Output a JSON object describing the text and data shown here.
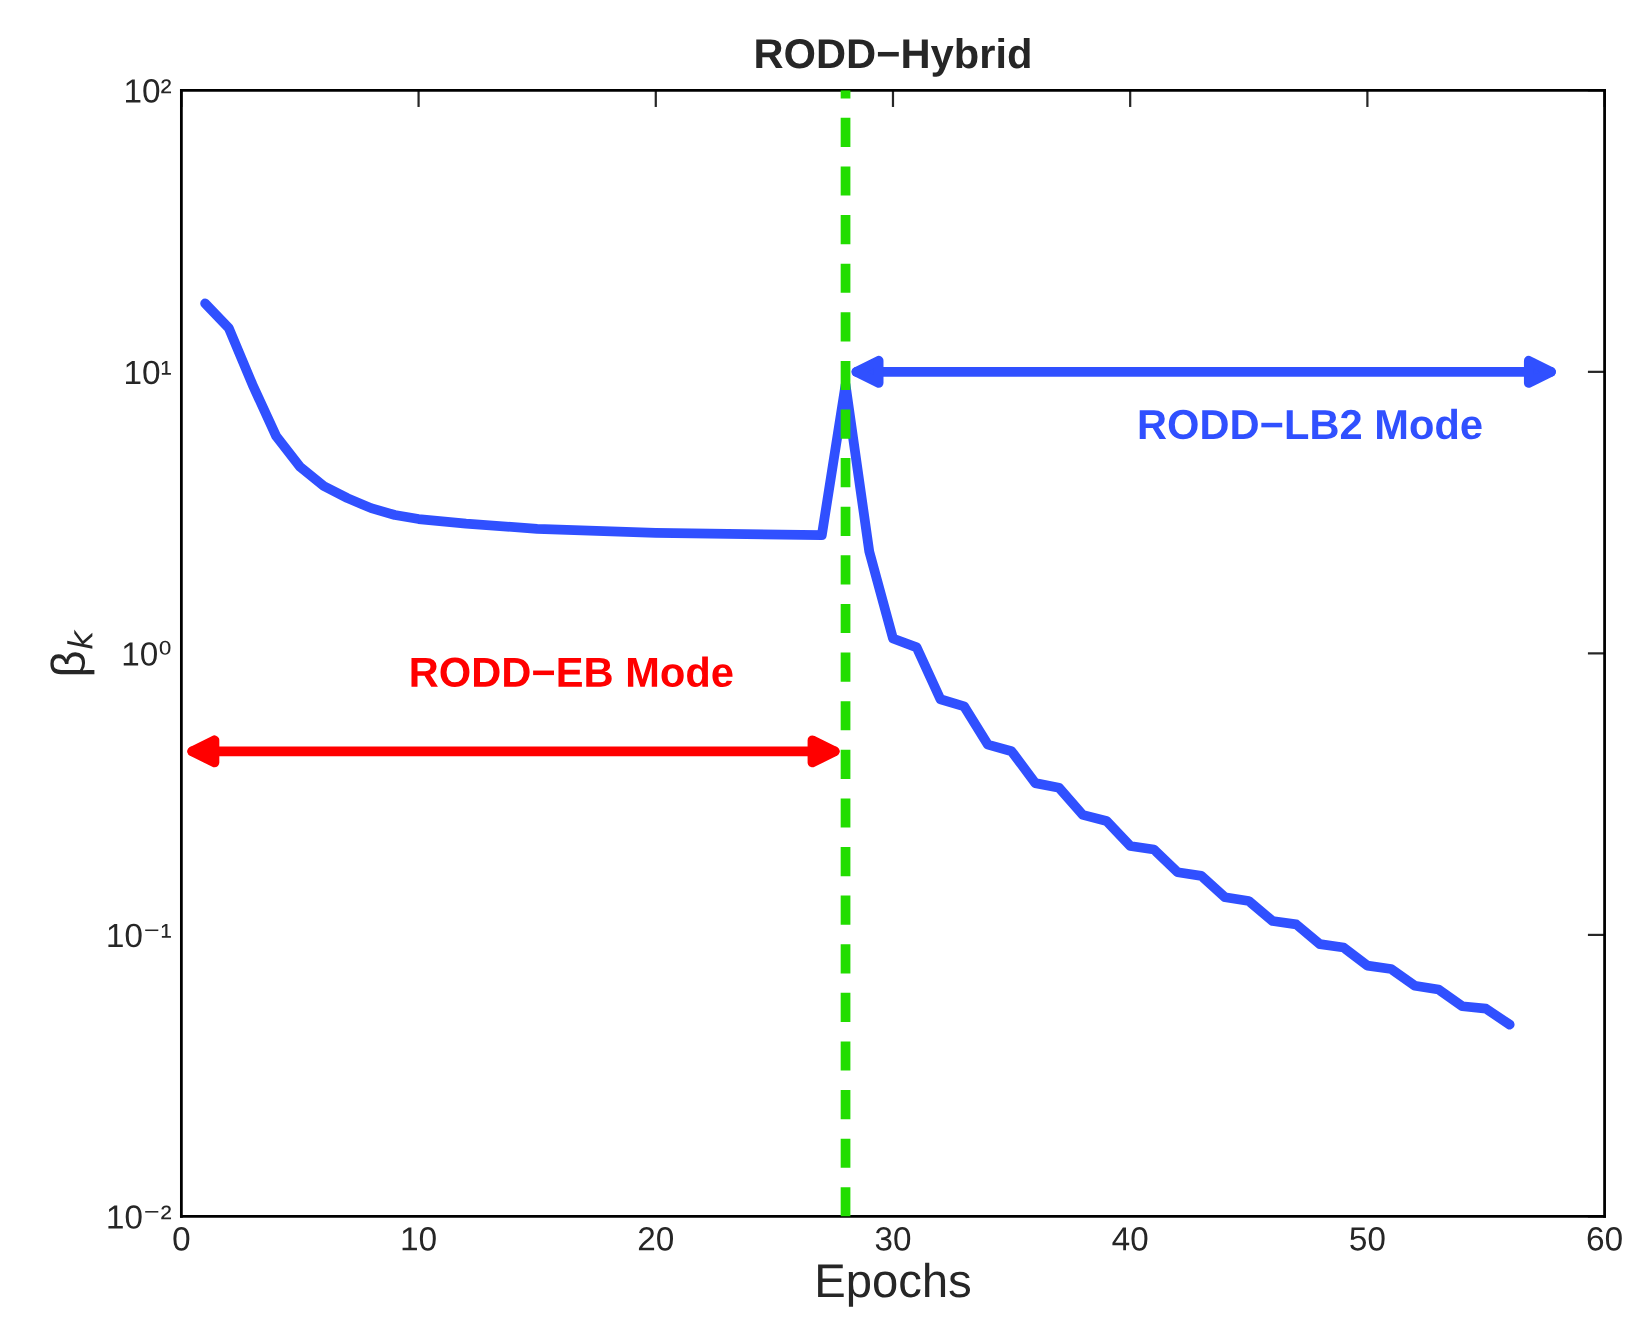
{
  "chart_data": {
    "type": "line",
    "title": "RODD−Hybrid",
    "xlabel": "Epochs",
    "ylabel": "β$_{k}$",
    "log": "y",
    "xlim": [
      0,
      60
    ],
    "xticks": [
      0,
      10,
      20,
      30,
      40,
      50,
      60
    ],
    "ylim": [
      0.01,
      100
    ],
    "yticks": [
      {
        "value": 0.01,
        "label": "10⁻²"
      },
      {
        "value": 0.1,
        "label": "10⁻¹"
      },
      {
        "value": 1,
        "label": "10⁰"
      },
      {
        "value": 10,
        "label": "10¹"
      },
      {
        "value": 100,
        "label": "10²"
      }
    ],
    "grid": false,
    "marker": "none",
    "line_style": "solid",
    "series": [
      {
        "color": "#3050ff",
        "x": [
          1,
          2,
          3,
          4,
          5,
          6,
          7,
          8,
          9,
          10,
          12,
          15,
          20,
          27,
          28,
          29,
          30,
          31,
          32,
          33,
          34,
          35,
          36,
          37,
          38,
          39,
          40,
          41,
          42,
          43,
          44,
          45,
          46,
          47,
          48,
          49,
          50,
          51,
          52,
          53,
          54,
          55,
          56
        ],
        "values": [
          17.5,
          14.3,
          9.0,
          5.9,
          4.6,
          3.93,
          3.56,
          3.28,
          3.1,
          3.0,
          2.89,
          2.77,
          2.68,
          2.63,
          9.0,
          2.3,
          1.13,
          1.05,
          0.687,
          0.648,
          0.474,
          0.449,
          0.346,
          0.333,
          0.267,
          0.254,
          0.207,
          0.201,
          0.167,
          0.162,
          0.136,
          0.132,
          0.112,
          0.109,
          0.0927,
          0.0902,
          0.0778,
          0.0757,
          0.066,
          0.064,
          0.0558,
          0.0547,
          0.048
        ]
      }
    ],
    "ref_lines": [
      {
        "axis": "x",
        "value": 28,
        "color": "#22dd00",
        "line_style": "dashed"
      }
    ],
    "annotations": [
      "RODD−EB Mode",
      "RODD−LB2 Mode"
    ]
  }
}
